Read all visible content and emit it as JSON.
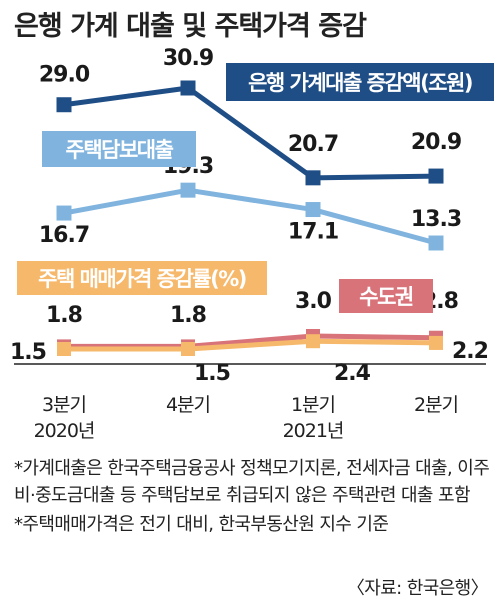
{
  "title": "은행 가계 대출 및 주택가격 증감",
  "notes": {
    "note1": "*가계대출은 한국주택금융공사 정책모기지론, 전세자금 대출, 이주비·중도금대출 등 주택담보로 취급되지 않은 주택관련 대출 포함",
    "note2": "*주택매매가격은 전기 대비, 한국부동산원 지수 기준"
  },
  "source": "〈자료: 한국은행〉",
  "colors": {
    "dark_blue": "#1f4e86",
    "light_blue": "#80b4de",
    "orange": "#f6b86a",
    "pink": "#d9737a"
  },
  "chart_data": [
    {
      "type": "line",
      "title": "은행 가계대출 증감액(조원)",
      "categories": [
        "3분기\n2020년",
        "4분기",
        "1분기\n2021년",
        "2분기"
      ],
      "series": [
        {
          "name": "은행 가계대출 증감액(조원)",
          "values": [
            29.0,
            30.9,
            20.7,
            20.9
          ],
          "labels": [
            "29.0",
            "30.9",
            "20.7",
            "20.9"
          ]
        },
        {
          "name": "주택담보대출",
          "values": [
            16.7,
            19.3,
            17.1,
            13.3
          ],
          "labels": [
            "16.7",
            "19.3",
            "17.1",
            "13.3"
          ]
        }
      ]
    },
    {
      "type": "line",
      "title": "주택 매매가격 증감률(%)",
      "categories": [
        "3분기\n2020년",
        "4분기",
        "1분기\n2021년",
        "2분기"
      ],
      "series": [
        {
          "name": "수도권",
          "values": [
            1.8,
            1.8,
            3.0,
            2.8
          ],
          "labels": [
            "1.8",
            "1.8",
            "3.0",
            "2.8"
          ]
        },
        {
          "name": "",
          "values": [
            1.5,
            1.5,
            2.4,
            2.2
          ],
          "labels": [
            "1.5",
            "1.5",
            "2.4",
            "2.2"
          ]
        }
      ]
    }
  ],
  "x_labels": [
    {
      "top": "3분기",
      "bottom": "2020년"
    },
    {
      "top": "4분기",
      "bottom": ""
    },
    {
      "top": "1분기",
      "bottom": "2021년"
    },
    {
      "top": "2분기",
      "bottom": ""
    }
  ],
  "labels": {
    "loan_title": "은행 가계대출 증감액(조원)",
    "mortgage_title": "주택담보대출",
    "price_title": "주택 매매가격 증감률(%)",
    "capital_title": "수도권"
  }
}
